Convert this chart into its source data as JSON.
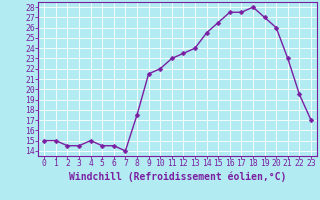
{
  "x": [
    0,
    1,
    2,
    3,
    4,
    5,
    6,
    7,
    8,
    9,
    10,
    11,
    12,
    13,
    14,
    15,
    16,
    17,
    18,
    19,
    20,
    21,
    22,
    23
  ],
  "y": [
    15.0,
    15.0,
    14.5,
    14.5,
    15.0,
    14.5,
    14.5,
    14.0,
    17.5,
    21.5,
    22.0,
    23.0,
    23.5,
    24.0,
    25.5,
    26.5,
    27.5,
    27.5,
    28.0,
    27.0,
    26.0,
    23.0,
    19.5,
    17.0
  ],
  "line_color": "#7b1fa2",
  "marker": "D",
  "markersize": 2.5,
  "linewidth": 1.0,
  "bg_color": "#b2ebf2",
  "grid_color": "#ffffff",
  "xlabel": "Windchill (Refroidissement éolien,°C)",
  "xlim": [
    -0.5,
    23.5
  ],
  "ylim": [
    13.5,
    28.5
  ],
  "yticks": [
    14,
    15,
    16,
    17,
    18,
    19,
    20,
    21,
    22,
    23,
    24,
    25,
    26,
    27,
    28
  ],
  "xticks": [
    0,
    1,
    2,
    3,
    4,
    5,
    6,
    7,
    8,
    9,
    10,
    11,
    12,
    13,
    14,
    15,
    16,
    17,
    18,
    19,
    20,
    21,
    22,
    23
  ],
  "tick_fontsize": 5.8,
  "xlabel_fontsize": 7.0,
  "spine_color": "#7b1fa2"
}
